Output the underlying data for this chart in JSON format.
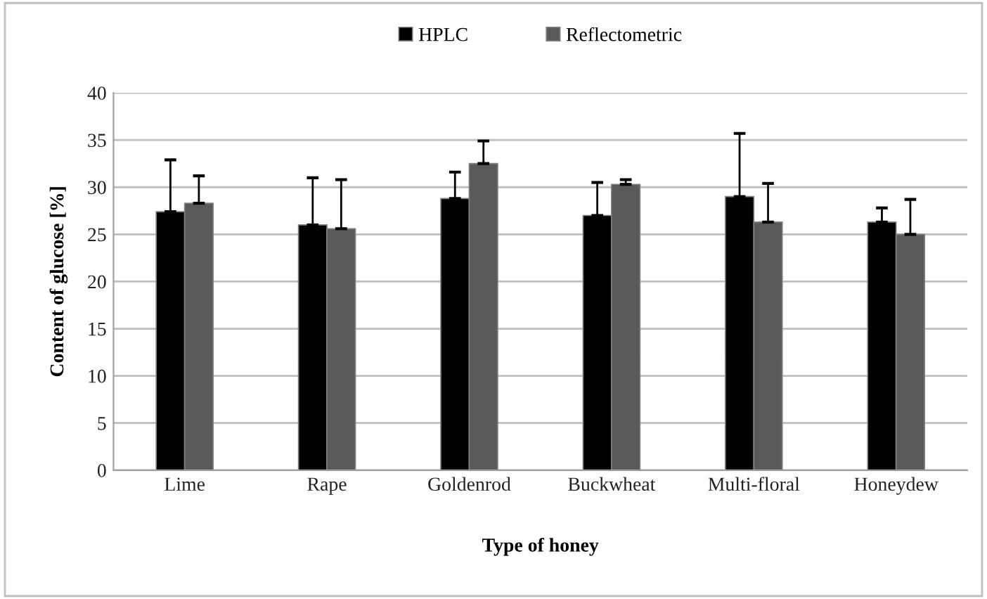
{
  "chart_data": {
    "type": "bar",
    "xlabel": "Type of honey",
    "ylabel": "Content of glucose [%]",
    "categories": [
      "Lime",
      "Rape",
      "Goldenrod",
      "Buckwheat",
      "Multi-floral",
      "Honeydew"
    ],
    "series": [
      {
        "name": "HPLC",
        "color": "#000000",
        "values": [
          27.4,
          26.0,
          28.8,
          27.0,
          29.0,
          26.3
        ],
        "errors": [
          [
            27.4,
            32.9
          ],
          [
            26.0,
            31.0
          ],
          [
            28.8,
            31.6
          ],
          [
            27.0,
            30.5
          ],
          [
            29.0,
            35.7
          ],
          [
            26.3,
            27.8
          ]
        ]
      },
      {
        "name": "Reflectometric",
        "color": "#595959",
        "values": [
          28.3,
          25.6,
          32.5,
          30.3,
          26.3,
          25.0
        ],
        "errors": [
          [
            28.3,
            31.2
          ],
          [
            25.6,
            30.8
          ],
          [
            32.5,
            34.9
          ],
          [
            30.3,
            30.8
          ],
          [
            26.3,
            30.4
          ],
          [
            25.0,
            28.7
          ]
        ]
      }
    ],
    "ylim": [
      0,
      40
    ],
    "yticks": [
      0,
      5,
      10,
      15,
      20,
      25,
      30,
      35,
      40
    ],
    "grid": "y",
    "legend": "top"
  }
}
